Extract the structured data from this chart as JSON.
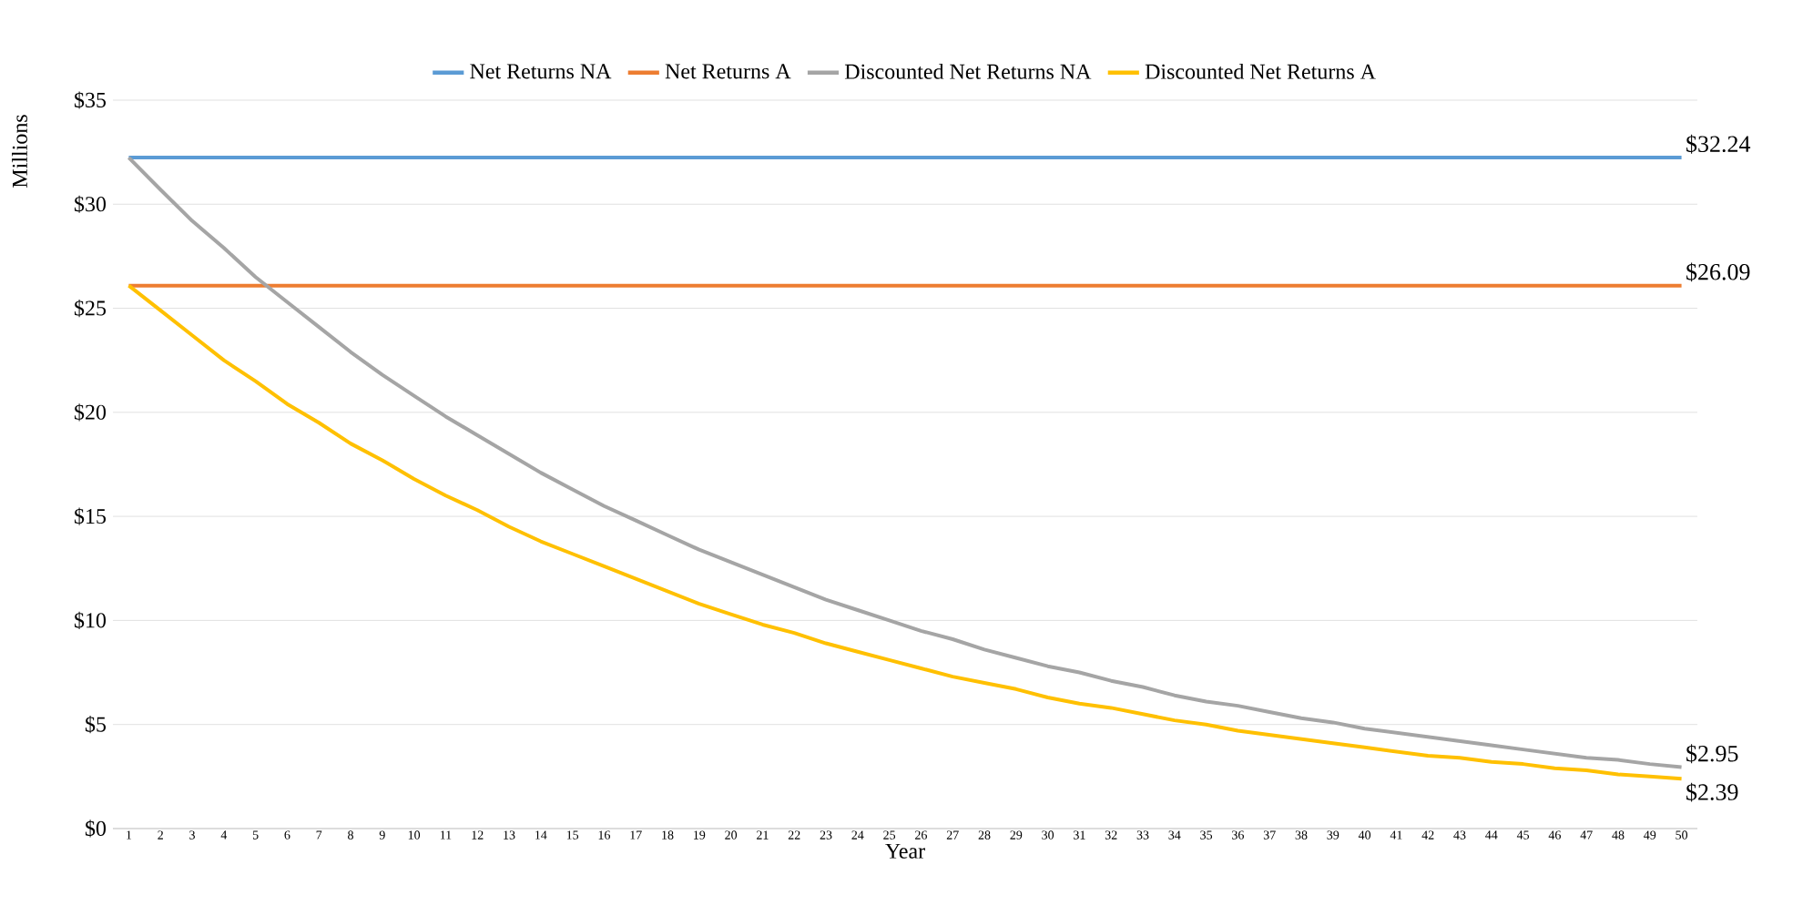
{
  "chart_data": {
    "type": "line",
    "xlabel": "Year",
    "ylabel": "Millions",
    "categories": [
      "1",
      "2",
      "3",
      "4",
      "5",
      "6",
      "7",
      "8",
      "9",
      "10",
      "11",
      "12",
      "13",
      "14",
      "15",
      "16",
      "17",
      "18",
      "19",
      "20",
      "21",
      "22",
      "23",
      "24",
      "25",
      "26",
      "27",
      "28",
      "29",
      "30",
      "31",
      "32",
      "33",
      "34",
      "35",
      "36",
      "37",
      "38",
      "39",
      "40",
      "41",
      "42",
      "43",
      "44",
      "45",
      "46",
      "47",
      "48",
      "49",
      "50"
    ],
    "series": [
      {
        "name": "Net Returns NA",
        "color": "#5b9bd5",
        "values": [
          32.24,
          32.24,
          32.24,
          32.24,
          32.24,
          32.24,
          32.24,
          32.24,
          32.24,
          32.24,
          32.24,
          32.24,
          32.24,
          32.24,
          32.24,
          32.24,
          32.24,
          32.24,
          32.24,
          32.24,
          32.24,
          32.24,
          32.24,
          32.24,
          32.24,
          32.24,
          32.24,
          32.24,
          32.24,
          32.24,
          32.24,
          32.24,
          32.24,
          32.24,
          32.24,
          32.24,
          32.24,
          32.24,
          32.24,
          32.24,
          32.24,
          32.24,
          32.24,
          32.24,
          32.24,
          32.24,
          32.24,
          32.24,
          32.24,
          32.24
        ],
        "value_labels": [
          null,
          null,
          null,
          null,
          null,
          null,
          null,
          null,
          null,
          null,
          null,
          null,
          null,
          null,
          null,
          null,
          null,
          null,
          null,
          null,
          null,
          null,
          null,
          null,
          null,
          null,
          null,
          null,
          null,
          null,
          null,
          null,
          null,
          null,
          null,
          null,
          null,
          null,
          null,
          null,
          null,
          null,
          null,
          null,
          null,
          null,
          null,
          null,
          null,
          "$32.24"
        ]
      },
      {
        "name": "Net Returns A",
        "color": "#ed7d31",
        "values": [
          26.09,
          26.09,
          26.09,
          26.09,
          26.09,
          26.09,
          26.09,
          26.09,
          26.09,
          26.09,
          26.09,
          26.09,
          26.09,
          26.09,
          26.09,
          26.09,
          26.09,
          26.09,
          26.09,
          26.09,
          26.09,
          26.09,
          26.09,
          26.09,
          26.09,
          26.09,
          26.09,
          26.09,
          26.09,
          26.09,
          26.09,
          26.09,
          26.09,
          26.09,
          26.09,
          26.09,
          26.09,
          26.09,
          26.09,
          26.09,
          26.09,
          26.09,
          26.09,
          26.09,
          26.09,
          26.09,
          26.09,
          26.09,
          26.09,
          26.09
        ],
        "value_labels": [
          null,
          null,
          null,
          null,
          null,
          null,
          null,
          null,
          null,
          null,
          null,
          null,
          null,
          null,
          null,
          null,
          null,
          null,
          null,
          null,
          null,
          null,
          null,
          null,
          null,
          null,
          null,
          null,
          null,
          null,
          null,
          null,
          null,
          null,
          null,
          null,
          null,
          null,
          null,
          null,
          null,
          null,
          null,
          null,
          null,
          null,
          null,
          null,
          null,
          "$26.09"
        ]
      },
      {
        "name": "Discounted Net Returns NA",
        "color": "#a5a5a5",
        "values": [
          32.24,
          30.7,
          29.2,
          27.9,
          26.5,
          25.3,
          24.1,
          22.9,
          21.8,
          20.8,
          19.8,
          18.9,
          18.0,
          17.1,
          16.3,
          15.5,
          14.8,
          14.1,
          13.4,
          12.8,
          12.2,
          11.6,
          11.0,
          10.5,
          10.0,
          9.5,
          9.1,
          8.6,
          8.2,
          7.8,
          7.5,
          7.1,
          6.8,
          6.4,
          6.1,
          5.9,
          5.6,
          5.3,
          5.1,
          4.8,
          4.6,
          4.4,
          4.2,
          4.0,
          3.8,
          3.6,
          3.4,
          3.3,
          3.1,
          2.95
        ],
        "value_labels": [
          null,
          null,
          null,
          null,
          null,
          null,
          null,
          null,
          null,
          null,
          null,
          null,
          null,
          null,
          null,
          null,
          null,
          null,
          null,
          null,
          null,
          null,
          null,
          null,
          null,
          null,
          null,
          null,
          null,
          null,
          null,
          null,
          null,
          null,
          null,
          null,
          null,
          null,
          null,
          null,
          null,
          null,
          null,
          null,
          null,
          null,
          null,
          null,
          null,
          "$2.95"
        ]
      },
      {
        "name": "Discounted Net Returns A",
        "color": "#ffc000",
        "values": [
          26.09,
          24.9,
          23.7,
          22.5,
          21.5,
          20.4,
          19.5,
          18.5,
          17.7,
          16.8,
          16.0,
          15.3,
          14.5,
          13.8,
          13.2,
          12.6,
          12.0,
          11.4,
          10.8,
          10.3,
          9.8,
          9.4,
          8.9,
          8.5,
          8.1,
          7.7,
          7.3,
          7.0,
          6.7,
          6.3,
          6.0,
          5.8,
          5.5,
          5.2,
          5.0,
          4.7,
          4.5,
          4.3,
          4.1,
          3.9,
          3.7,
          3.5,
          3.4,
          3.2,
          3.1,
          2.9,
          2.8,
          2.6,
          2.5,
          2.39
        ],
        "value_labels": [
          null,
          null,
          null,
          null,
          null,
          null,
          null,
          null,
          null,
          null,
          null,
          null,
          null,
          null,
          null,
          null,
          null,
          null,
          null,
          null,
          null,
          null,
          null,
          null,
          null,
          null,
          null,
          null,
          null,
          null,
          null,
          null,
          null,
          null,
          null,
          null,
          null,
          null,
          null,
          null,
          null,
          null,
          null,
          null,
          null,
          null,
          null,
          null,
          null,
          "$2.39"
        ]
      }
    ],
    "ylim": [
      0,
      35
    ],
    "yticks": [
      {
        "value": 0,
        "label": "$0"
      },
      {
        "value": 5,
        "label": "$5"
      },
      {
        "value": 10,
        "label": "$10"
      },
      {
        "value": 15,
        "label": "$15"
      },
      {
        "value": 20,
        "label": "$20"
      },
      {
        "value": 25,
        "label": "$25"
      },
      {
        "value": 30,
        "label": "$30"
      },
      {
        "value": 35,
        "label": "$35"
      }
    ],
    "grid": "y",
    "legend": "top"
  }
}
